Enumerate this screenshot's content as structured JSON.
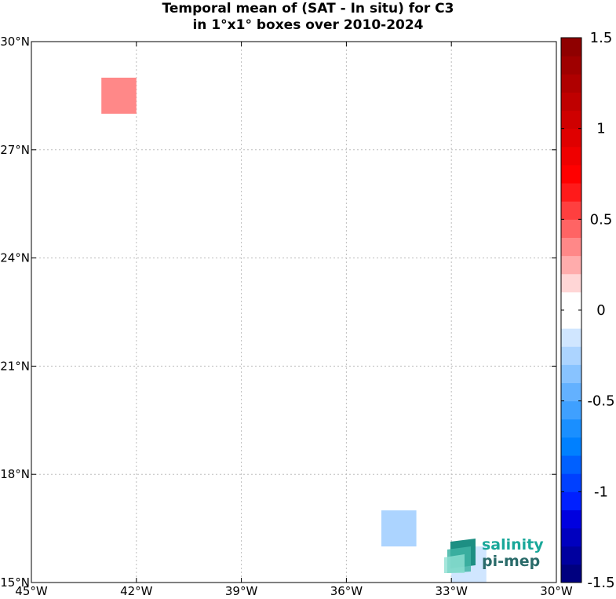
{
  "title_line1": "Temporal mean of (SAT - In situ) for C3",
  "title_line2": "in 1°x1° boxes over 2010-2024",
  "logo": {
    "word1": "salinity",
    "word2": "pi-mep"
  },
  "chart_data": {
    "type": "heatmap",
    "title": "Temporal mean of (SAT - In situ) for C3 in 1°x1° boxes over 2010-2024",
    "xlim": [
      -45,
      -30
    ],
    "ylim": [
      15,
      30
    ],
    "x_ticks": [
      -45,
      -42,
      -39,
      -36,
      -33,
      -30
    ],
    "x_tick_labels": [
      "45°W",
      "42°W",
      "39°W",
      "36°W",
      "33°W",
      "30°W"
    ],
    "y_ticks": [
      15,
      18,
      21,
      24,
      27,
      30
    ],
    "y_tick_labels": [
      "15°N",
      "18°N",
      "21°N",
      "24°N",
      "27°N",
      "30°N"
    ],
    "grid": true,
    "cells": [
      {
        "lon": [
          -43,
          -42
        ],
        "lat": [
          28,
          29
        ],
        "value": 0.3
      },
      {
        "lon": [
          -35,
          -34
        ],
        "lat": [
          16,
          17
        ],
        "value": -0.25
      },
      {
        "lon": [
          -33,
          -32
        ],
        "lat": [
          15,
          16
        ],
        "value": -0.15
      }
    ],
    "colorbar": {
      "range": [
        -1.5,
        1.5
      ],
      "ticks": [
        -1.5,
        -1,
        -0.5,
        0,
        0.5,
        1,
        1.5
      ],
      "tick_labels": [
        "-1.5",
        "-1",
        "-0.5",
        "0",
        "0.5",
        "1",
        "1.5"
      ],
      "colors": [
        "#00007f",
        "#00009f",
        "#0000bf",
        "#0000df",
        "#0020ff",
        "#0040ff",
        "#0060ff",
        "#0080ff",
        "#1a8fff",
        "#3fa0ff",
        "#63b1ff",
        "#88c3ff",
        "#acd4ff",
        "#d0e6ff",
        "#ffffff",
        "#ffffff",
        "#ffd6d6",
        "#ffacac",
        "#ff8888",
        "#ff6464",
        "#ff3f3f",
        "#ff1a1a",
        "#ff0000",
        "#ef0000",
        "#df0000",
        "#cf0000",
        "#bf0000",
        "#af0000",
        "#9f0000",
        "#8f0000"
      ]
    }
  }
}
